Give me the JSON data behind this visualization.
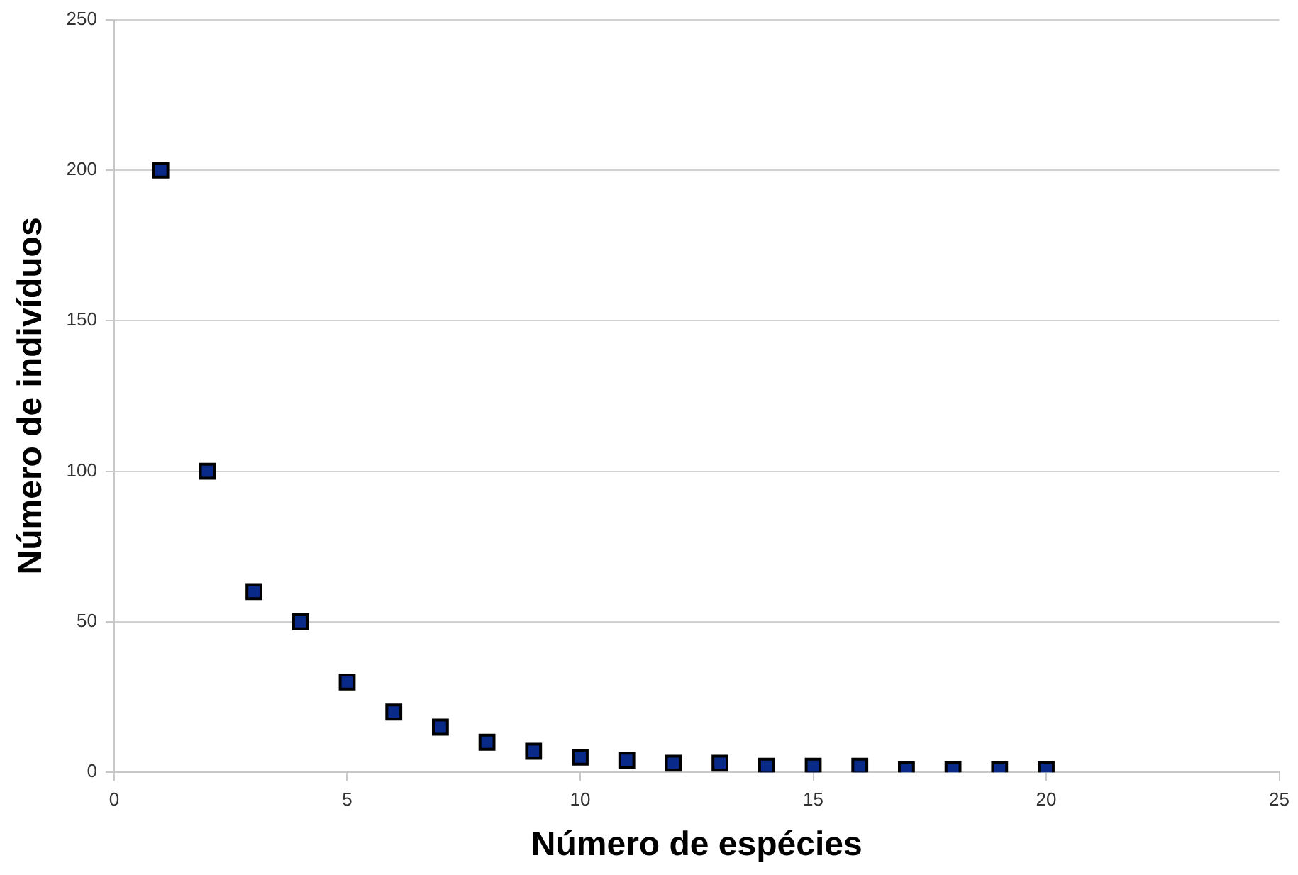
{
  "chart_data": {
    "type": "scatter",
    "xlabel": "Número de espécies",
    "ylabel": "Número de indivíduos",
    "x": [
      1,
      2,
      3,
      4,
      5,
      6,
      7,
      8,
      9,
      10,
      11,
      12,
      13,
      14,
      15,
      16,
      17,
      18,
      19,
      20
    ],
    "series": [
      {
        "color": "#0a2a8a",
        "values": [
          200,
          100,
          60,
          50,
          30,
          20,
          15,
          10,
          7,
          5,
          4,
          3,
          3,
          2,
          2,
          2,
          1,
          1,
          1,
          1
        ]
      }
    ],
    "xlim": [
      0,
      25
    ],
    "xticks": [
      0,
      5,
      10,
      15,
      20,
      25
    ],
    "ylim": [
      0,
      250
    ],
    "yticks": [
      0,
      50,
      100,
      150,
      200,
      250
    ],
    "grid": "y",
    "marker": "square",
    "legend": false
  }
}
